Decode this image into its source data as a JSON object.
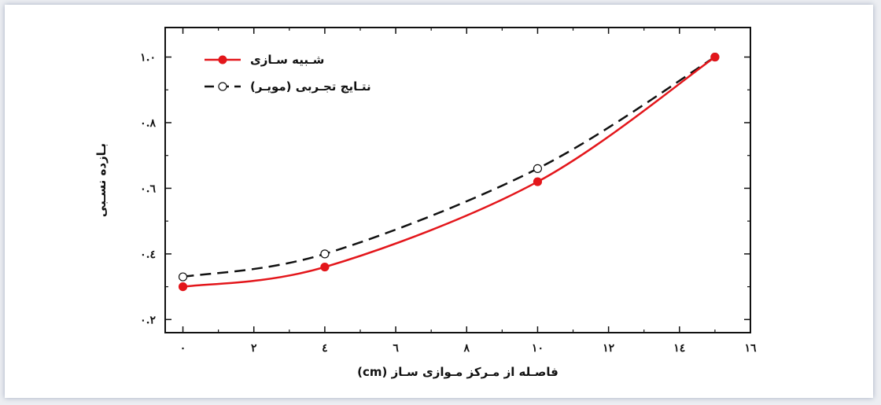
{
  "chart_data": {
    "type": "line",
    "title": "",
    "xlabel": "فاصـله از مـرکز مـوازی سـاز (cm)",
    "ylabel": "بـازده نسـبی",
    "xlim": [
      -0.5,
      16
    ],
    "ylim": [
      0.16,
      1.09
    ],
    "x_ticks": [
      0,
      2,
      4,
      6,
      8,
      10,
      12,
      14,
      16
    ],
    "x_tick_labels": [
      "٠",
      "٢",
      "٤",
      "٦",
      "٨",
      "١٠",
      "١٢",
      "١٤",
      "١٦"
    ],
    "y_ticks": [
      0.2,
      0.4,
      0.6,
      0.8,
      1.0
    ],
    "y_tick_labels": [
      "٠.٢",
      "٠.٤",
      "٠.٦",
      "٠.٨",
      "١.٠"
    ],
    "series": [
      {
        "name": "شـبیه سـازی",
        "color": "#e3161b",
        "style": "solid",
        "marker": "filled-circle",
        "x": [
          0,
          4,
          10,
          15
        ],
        "y": [
          0.3,
          0.36,
          0.62,
          1.0
        ]
      },
      {
        "name": "نتـایج تجـربی (مویـر)",
        "color": "#111111",
        "style": "dashed",
        "marker": "open-circle",
        "x": [
          0,
          4,
          10,
          15
        ],
        "y": [
          0.33,
          0.4,
          0.66,
          1.0
        ]
      }
    ],
    "legend_position": "top-left",
    "grid": false
  }
}
